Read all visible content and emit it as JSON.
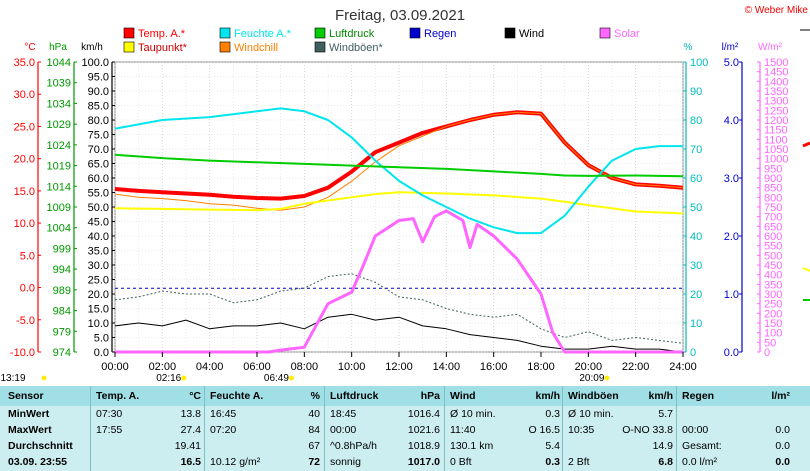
{
  "chart_data": {
    "type": "line",
    "title": "Freitag, 03.09.2021",
    "copyright": "© Weber Mike",
    "x_ticks": [
      "00:00",
      "02:00",
      "04:00",
      "06:00",
      "08:00",
      "10:00",
      "12:00",
      "14:00",
      "16:00",
      "18:00",
      "20:00",
      "22:00",
      "24:00"
    ],
    "x_range_hours": [
      0,
      24
    ],
    "axes": {
      "temp_c": {
        "label": "°C",
        "range": [
          -10,
          35
        ],
        "ticks": [
          "35.0",
          "30.0",
          "25.0",
          "20.0",
          "15.0",
          "10.0",
          "5.0",
          "0.0",
          "-5.0",
          "-10.0"
        ],
        "color": "#ff0000"
      },
      "pressure_hpa": {
        "label": "hPa",
        "range": [
          974,
          1044
        ],
        "ticks": [
          "1044",
          "1039",
          "1034",
          "1029",
          "1024",
          "1019",
          "1014",
          "1009",
          "1004",
          "999",
          "994",
          "989",
          "984",
          "979",
          "974"
        ],
        "color": "#008000"
      },
      "wind_kmh": {
        "label": "km/h",
        "range": [
          0,
          100
        ],
        "ticks": [
          "100.0",
          "95.0",
          "90.0",
          "85.0",
          "80.0",
          "75.0",
          "70.0",
          "65.0",
          "60.0",
          "55.0",
          "50.0",
          "45.0",
          "40.0",
          "35.0",
          "30.0",
          "25.0",
          "20.0",
          "15.0",
          "10.0",
          "5.0",
          "0.0"
        ],
        "color": "#000000"
      },
      "humidity_pct": {
        "label": "%",
        "range": [
          0,
          100
        ],
        "ticks": [
          "100",
          "90",
          "80",
          "70",
          "60",
          "50",
          "40",
          "30",
          "20",
          "10",
          "0"
        ],
        "color": "#00cccc"
      },
      "rain_lm2": {
        "label": "l/m²",
        "range": [
          0,
          5
        ],
        "ticks": [
          "5.0",
          "4.0",
          "3.0",
          "2.0",
          "1.0",
          "0.0"
        ],
        "color": "#0000cc"
      },
      "solar_wm2": {
        "label": "W/m²",
        "range": [
          0,
          1500
        ],
        "ticks": [
          "1500",
          "1450",
          "1400",
          "1350",
          "1300",
          "1250",
          "1200",
          "1150",
          "1100",
          "1050",
          "1000",
          "950",
          "900",
          "850",
          "800",
          "750",
          "700",
          "650",
          "600",
          "550",
          "500",
          "450",
          "400",
          "350",
          "300",
          "250",
          "200",
          "150",
          "100",
          "50",
          "0"
        ],
        "color": "#ff66ff"
      }
    },
    "legend": [
      {
        "name": "Temp. A.*",
        "color": "#ff0000"
      },
      {
        "name": "Feuchte A.*",
        "color": "#00e5ee"
      },
      {
        "name": "Luftdruck",
        "color": "#00cc00"
      },
      {
        "name": "Regen",
        "color": "#0000cc"
      },
      {
        "name": "Wind",
        "color": "#000000"
      },
      {
        "name": "Solar",
        "color": "#ff66ff"
      },
      {
        "name": "Taupunkt*",
        "color": "#ffff00"
      },
      {
        "name": "Windchill",
        "color": "#ff8000"
      },
      {
        "name": "Windböen*",
        "color": "#406060"
      }
    ],
    "series": [
      {
        "name": "Temp. A.*",
        "axis": "temp_c",
        "color": "#ff0000",
        "width": 4,
        "points": [
          [
            0,
            15.3
          ],
          [
            1,
            15.0
          ],
          [
            2,
            14.8
          ],
          [
            3,
            14.6
          ],
          [
            4,
            14.4
          ],
          [
            5,
            14.1
          ],
          [
            6,
            13.9
          ],
          [
            7,
            13.8
          ],
          [
            8,
            14.2
          ],
          [
            9,
            15.5
          ],
          [
            10,
            18.0
          ],
          [
            11,
            21.0
          ],
          [
            12,
            22.5
          ],
          [
            13,
            24.0
          ],
          [
            14,
            25.0
          ],
          [
            15,
            26.0
          ],
          [
            16,
            26.8
          ],
          [
            17,
            27.2
          ],
          [
            18,
            27.0
          ],
          [
            19,
            22.5
          ],
          [
            20,
            19.0
          ],
          [
            21,
            17.0
          ],
          [
            22,
            16.0
          ],
          [
            23,
            15.8
          ],
          [
            24,
            15.5
          ]
        ]
      },
      {
        "name": "Windchill",
        "axis": "temp_c",
        "color": "#ff8000",
        "width": 1,
        "points": [
          [
            0,
            14.5
          ],
          [
            1,
            14.0
          ],
          [
            2,
            13.8
          ],
          [
            3,
            13.5
          ],
          [
            4,
            13.0
          ],
          [
            5,
            12.8
          ],
          [
            6,
            12.3
          ],
          [
            7,
            12.0
          ],
          [
            8,
            12.5
          ],
          [
            9,
            14.0
          ],
          [
            10,
            16.5
          ],
          [
            11,
            19.5
          ],
          [
            12,
            22.0
          ],
          [
            13,
            23.5
          ],
          [
            14,
            25.0
          ],
          [
            15,
            26.0
          ],
          [
            16,
            26.8
          ],
          [
            17,
            27.2
          ],
          [
            18,
            27.0
          ],
          [
            19,
            22.5
          ],
          [
            20,
            19.0
          ],
          [
            21,
            17.0
          ],
          [
            22,
            16.0
          ],
          [
            23,
            15.8
          ],
          [
            24,
            15.5
          ]
        ]
      },
      {
        "name": "Taupunkt*",
        "axis": "temp_c",
        "color": "#ffff00",
        "width": 2,
        "points": [
          [
            0,
            12.3
          ],
          [
            2,
            12.2
          ],
          [
            4,
            12.1
          ],
          [
            6,
            12.0
          ],
          [
            7,
            12.2
          ],
          [
            8,
            13.0
          ],
          [
            10,
            14.0
          ],
          [
            11,
            14.5
          ],
          [
            12,
            14.8
          ],
          [
            14,
            14.6
          ],
          [
            16,
            14.3
          ],
          [
            18,
            13.8
          ],
          [
            19,
            13.3
          ],
          [
            20,
            12.8
          ],
          [
            22,
            11.8
          ],
          [
            24,
            11.5
          ]
        ]
      },
      {
        "name": "Feuchte A.*",
        "axis": "humidity_pct",
        "color": "#00e5ee",
        "width": 2,
        "points": [
          [
            0,
            77
          ],
          [
            2,
            80
          ],
          [
            4,
            81
          ],
          [
            6,
            83
          ],
          [
            7,
            84
          ],
          [
            8,
            83
          ],
          [
            9,
            80
          ],
          [
            10,
            74
          ],
          [
            11,
            66
          ],
          [
            12,
            59
          ],
          [
            13,
            54
          ],
          [
            14,
            50
          ],
          [
            15,
            46
          ],
          [
            16,
            43
          ],
          [
            17,
            41
          ],
          [
            18,
            41
          ],
          [
            19,
            47
          ],
          [
            20,
            57
          ],
          [
            21,
            66
          ],
          [
            22,
            70
          ],
          [
            23,
            71
          ],
          [
            24,
            71
          ]
        ]
      },
      {
        "name": "Luftdruck",
        "axis": "pressure_hpa",
        "color": "#00cc00",
        "width": 2,
        "points": [
          [
            0,
            1021.6
          ],
          [
            2,
            1020.8
          ],
          [
            4,
            1020.2
          ],
          [
            6,
            1019.8
          ],
          [
            8,
            1019.4
          ],
          [
            10,
            1019.0
          ],
          [
            12,
            1018.6
          ],
          [
            14,
            1018.2
          ],
          [
            16,
            1017.6
          ],
          [
            18,
            1017.0
          ],
          [
            19,
            1016.6
          ],
          [
            20,
            1016.5
          ],
          [
            22,
            1016.6
          ],
          [
            24,
            1016.4
          ]
        ]
      },
      {
        "name": "Windböen*",
        "axis": "wind_kmh",
        "color": "#406060",
        "width": 1,
        "dashed": true,
        "points": [
          [
            0,
            18
          ],
          [
            1,
            19
          ],
          [
            2,
            21
          ],
          [
            3,
            20
          ],
          [
            4,
            20
          ],
          [
            5,
            17
          ],
          [
            6,
            18
          ],
          [
            7,
            21
          ],
          [
            8,
            22
          ],
          [
            9,
            26
          ],
          [
            10,
            27
          ],
          [
            11,
            24
          ],
          [
            12,
            19
          ],
          [
            13,
            18
          ],
          [
            14,
            15
          ],
          [
            15,
            13
          ],
          [
            16,
            12
          ],
          [
            17,
            13
          ],
          [
            18,
            8
          ],
          [
            19,
            5
          ],
          [
            20,
            7
          ],
          [
            21,
            4
          ],
          [
            22,
            5
          ],
          [
            23,
            4
          ],
          [
            24,
            3
          ]
        ]
      },
      {
        "name": "Wind",
        "axis": "wind_kmh",
        "color": "#000000",
        "width": 1,
        "points": [
          [
            0,
            9
          ],
          [
            1,
            10
          ],
          [
            2,
            9
          ],
          [
            3,
            11
          ],
          [
            4,
            8
          ],
          [
            5,
            9
          ],
          [
            6,
            9
          ],
          [
            7,
            10
          ],
          [
            8,
            8
          ],
          [
            9,
            12
          ],
          [
            10,
            13
          ],
          [
            11,
            11
          ],
          [
            12,
            12
          ],
          [
            13,
            9
          ],
          [
            14,
            8
          ],
          [
            15,
            6
          ],
          [
            16,
            5
          ],
          [
            17,
            4
          ],
          [
            18,
            2
          ],
          [
            19,
            1
          ],
          [
            20,
            1
          ],
          [
            21,
            2
          ],
          [
            22,
            1
          ],
          [
            23,
            1
          ],
          [
            24,
            0
          ]
        ]
      },
      {
        "name": "Solar",
        "axis": "solar_wm2",
        "color": "#ff66ff",
        "width": 3,
        "points": [
          [
            0,
            0
          ],
          [
            6.5,
            0
          ],
          [
            7,
            10
          ],
          [
            8,
            25
          ],
          [
            9,
            250
          ],
          [
            10,
            310
          ],
          [
            10.5,
            450
          ],
          [
            11,
            600
          ],
          [
            12,
            680
          ],
          [
            12.6,
            690
          ],
          [
            13,
            570
          ],
          [
            13.5,
            700
          ],
          [
            14,
            730
          ],
          [
            14.7,
            680
          ],
          [
            15,
            540
          ],
          [
            15.3,
            660
          ],
          [
            16,
            600
          ],
          [
            17,
            480
          ],
          [
            18,
            300
          ],
          [
            18.5,
            100
          ],
          [
            19,
            0
          ],
          [
            24,
            0
          ]
        ]
      }
    ],
    "rain_reference_line": {
      "axis": "rain_lm2",
      "value": 1.1,
      "color": "#0000cc",
      "dashed": true
    },
    "below_axis_markers": [
      {
        "label": "13:19",
        "x": 0
      },
      {
        "label": "02:16",
        "x": 2.27
      },
      {
        "label": "06:49",
        "x": 6.82
      },
      {
        "label": "20:09",
        "x": 20.15
      }
    ]
  },
  "table": {
    "headers": [
      {
        "label": "Sensor"
      },
      {
        "label": "Temp. A.",
        "unit": "°C"
      },
      {
        "label": "Feuchte A.",
        "unit": "%"
      },
      {
        "label": "Luftdruck",
        "unit": "hPa"
      },
      {
        "label": "Wind",
        "unit": "km/h"
      },
      {
        "label": "Windböen",
        "unit": "km/h"
      },
      {
        "label": "Regen",
        "unit": "l/m²"
      }
    ],
    "rows": [
      {
        "label": "MinWert",
        "cells": [
          [
            "07:30",
            "13.8"
          ],
          [
            "16:45",
            "40"
          ],
          [
            "18:45",
            "1016.4"
          ],
          [
            "Ø 10 min.",
            "0.3"
          ],
          [
            "Ø 10 min.",
            "5.7"
          ],
          [
            "",
            ""
          ]
        ]
      },
      {
        "label": "MaxWert",
        "cells": [
          [
            "17:55",
            "27.4"
          ],
          [
            "07:20",
            "84"
          ],
          [
            "00:00",
            "1021.6"
          ],
          [
            "11:40",
            "O 16.5"
          ],
          [
            "10:35",
            "O-NO 33.8"
          ],
          [
            "00:00",
            "0.0"
          ]
        ]
      },
      {
        "label": "Durchschnitt",
        "cells": [
          [
            "",
            "19.41"
          ],
          [
            "",
            "67"
          ],
          [
            "^0.8hPa/h",
            "1018.9"
          ],
          [
            "130.1 km",
            "5.4"
          ],
          [
            "",
            "14.9"
          ],
          [
            "Gesamt:",
            "0.0"
          ]
        ]
      },
      {
        "label": "03.09. 23:55",
        "cells": [
          [
            "",
            "16.5"
          ],
          [
            "10.12 g/m²",
            "72"
          ],
          [
            "sonnig",
            "1017.0"
          ],
          [
            "0 Bft",
            "0.3"
          ],
          [
            "2 Bft",
            "6.8"
          ],
          [
            "0.0 l/m²",
            "0.0"
          ]
        ]
      }
    ]
  }
}
